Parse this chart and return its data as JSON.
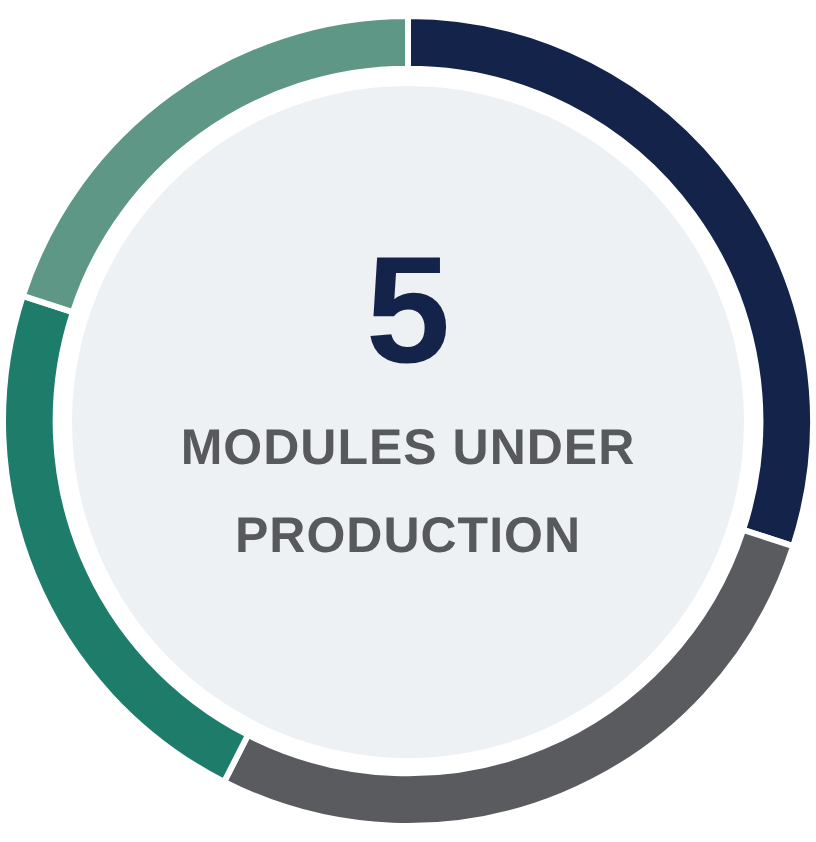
{
  "chart_data": {
    "type": "donut",
    "categories": [
      null,
      null,
      null,
      null
    ],
    "values": [
      30,
      27.5,
      22.5,
      20
    ],
    "colors": [
      "#13234a",
      "#5a5b5e",
      "#1e7d6a",
      "#5f9787"
    ],
    "annotations": [
      "5",
      "MODULES UNDER PRODUCTION"
    ],
    "legend": false
  }
}
